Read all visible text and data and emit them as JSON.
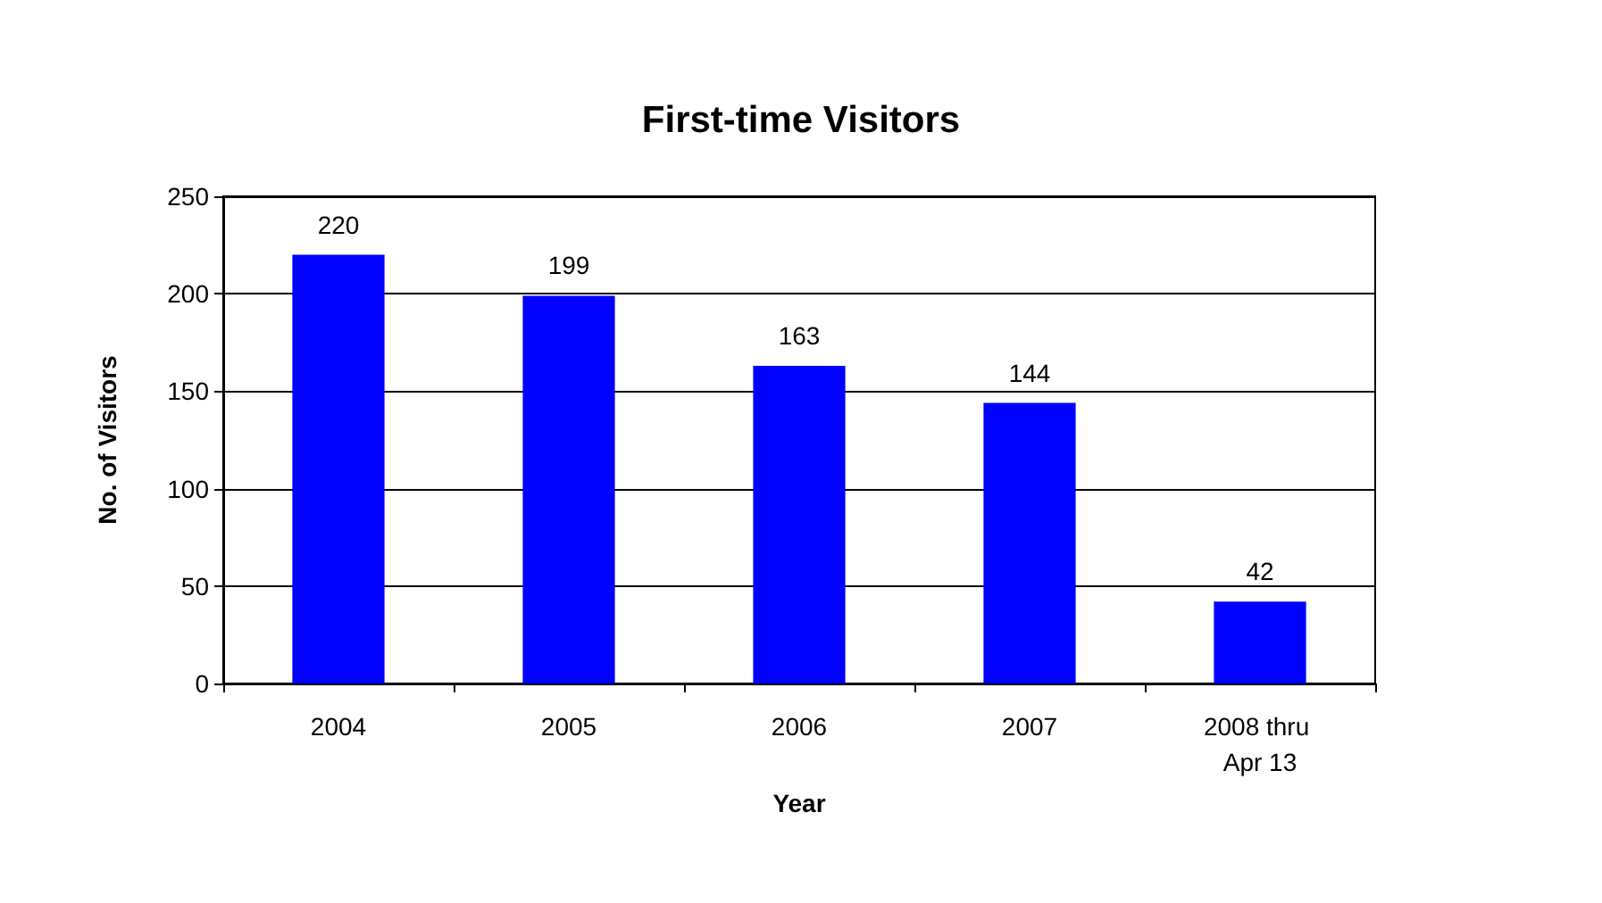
{
  "chart_data": {
    "type": "bar",
    "title": "First-time Visitors",
    "xlabel": "Year",
    "ylabel": "No. of Visitors",
    "categories": [
      "2004",
      "2005",
      "2006",
      "2007",
      "2008 thru Apr 13"
    ],
    "values": [
      220,
      199,
      163,
      144,
      42
    ],
    "color": "#0000ff",
    "ylim": [
      0,
      250
    ],
    "yticks": [
      0,
      50,
      100,
      150,
      200,
      250
    ],
    "grid": "y",
    "data_labels": true
  }
}
